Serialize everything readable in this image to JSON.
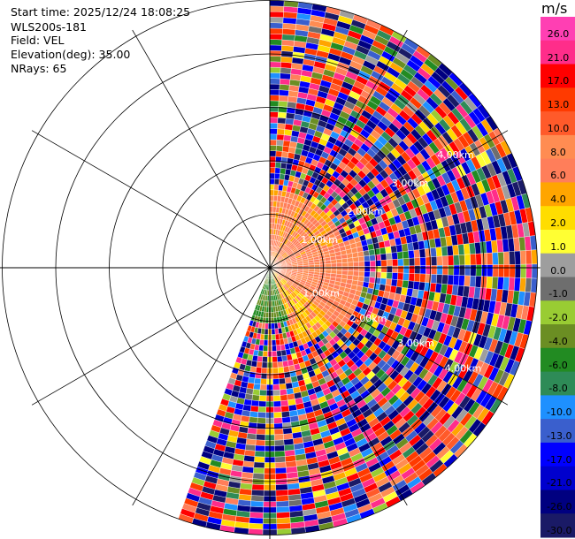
{
  "header": {
    "start_time": "Start time: 2025/12/24 18:08:25",
    "instrument": "WLS200s-181",
    "field": "Field: VEL",
    "elevation": "Elevation(deg): 35.00",
    "nrays": "NRays: 65"
  },
  "colorbar": {
    "unit": "m/s",
    "ticks": [
      "26.0",
      "21.0",
      "17.0",
      "13.0",
      "10.0",
      "8.0",
      "6.0",
      "4.0",
      "2.0",
      "1.0",
      "0.0",
      "-1.0",
      "-2.0",
      "-4.0",
      "-6.0",
      "-8.0",
      "-10.0",
      "-13.0",
      "-17.0",
      "-21.0",
      "-26.0",
      "-30.0"
    ],
    "colors": [
      "#ff3fb3",
      "#ff2d8a",
      "#ff0000",
      "#ff3a00",
      "#ff5a2a",
      "#ff8c52",
      "#ff7e5a",
      "#ffa500",
      "#ffdd00",
      "#ffff33",
      "#9e9e9e",
      "#6e6e6e",
      "#99cc33",
      "#6b8e23",
      "#228b22",
      "#2e8b57",
      "#1e90ff",
      "#3a5fcd",
      "#0000ff",
      "#0000cd",
      "#000080",
      "#1a1a66"
    ]
  },
  "chart_data": {
    "type": "heatmap",
    "projection": "polar-ppi",
    "field": "VEL",
    "elevation_deg": 35.0,
    "n_rays": 65,
    "azimuth_start_deg": 0,
    "azimuth_end_deg": 200,
    "range_rings_km": [
      1.0,
      2.0,
      3.0,
      4.0,
      5.0
    ],
    "range_labels": [
      "1.00km",
      "2.00km",
      "3.00km",
      "4.00km"
    ],
    "max_range_km": 5.0,
    "vmin": -30.0,
    "vmax": 26.0,
    "spoke_angles_deg": [
      0,
      30,
      60,
      90,
      120,
      150,
      180,
      210,
      240,
      270,
      300,
      330
    ],
    "near_field": [
      {
        "azimuth_deg": [
          0,
          70
        ],
        "range_km": [
          0,
          1.5
        ],
        "velocity_ms": 7.0
      },
      {
        "azimuth_deg": [
          70,
          130
        ],
        "range_km": [
          0,
          1.8
        ],
        "velocity_ms": 8.0
      },
      {
        "azimuth_deg": [
          130,
          160
        ],
        "range_km": [
          0,
          1.6
        ],
        "velocity_ms": 5.0
      },
      {
        "azimuth_deg": [
          160,
          200
        ],
        "range_km": [
          0,
          1.0
        ],
        "velocity_ms": -4.0
      }
    ]
  }
}
